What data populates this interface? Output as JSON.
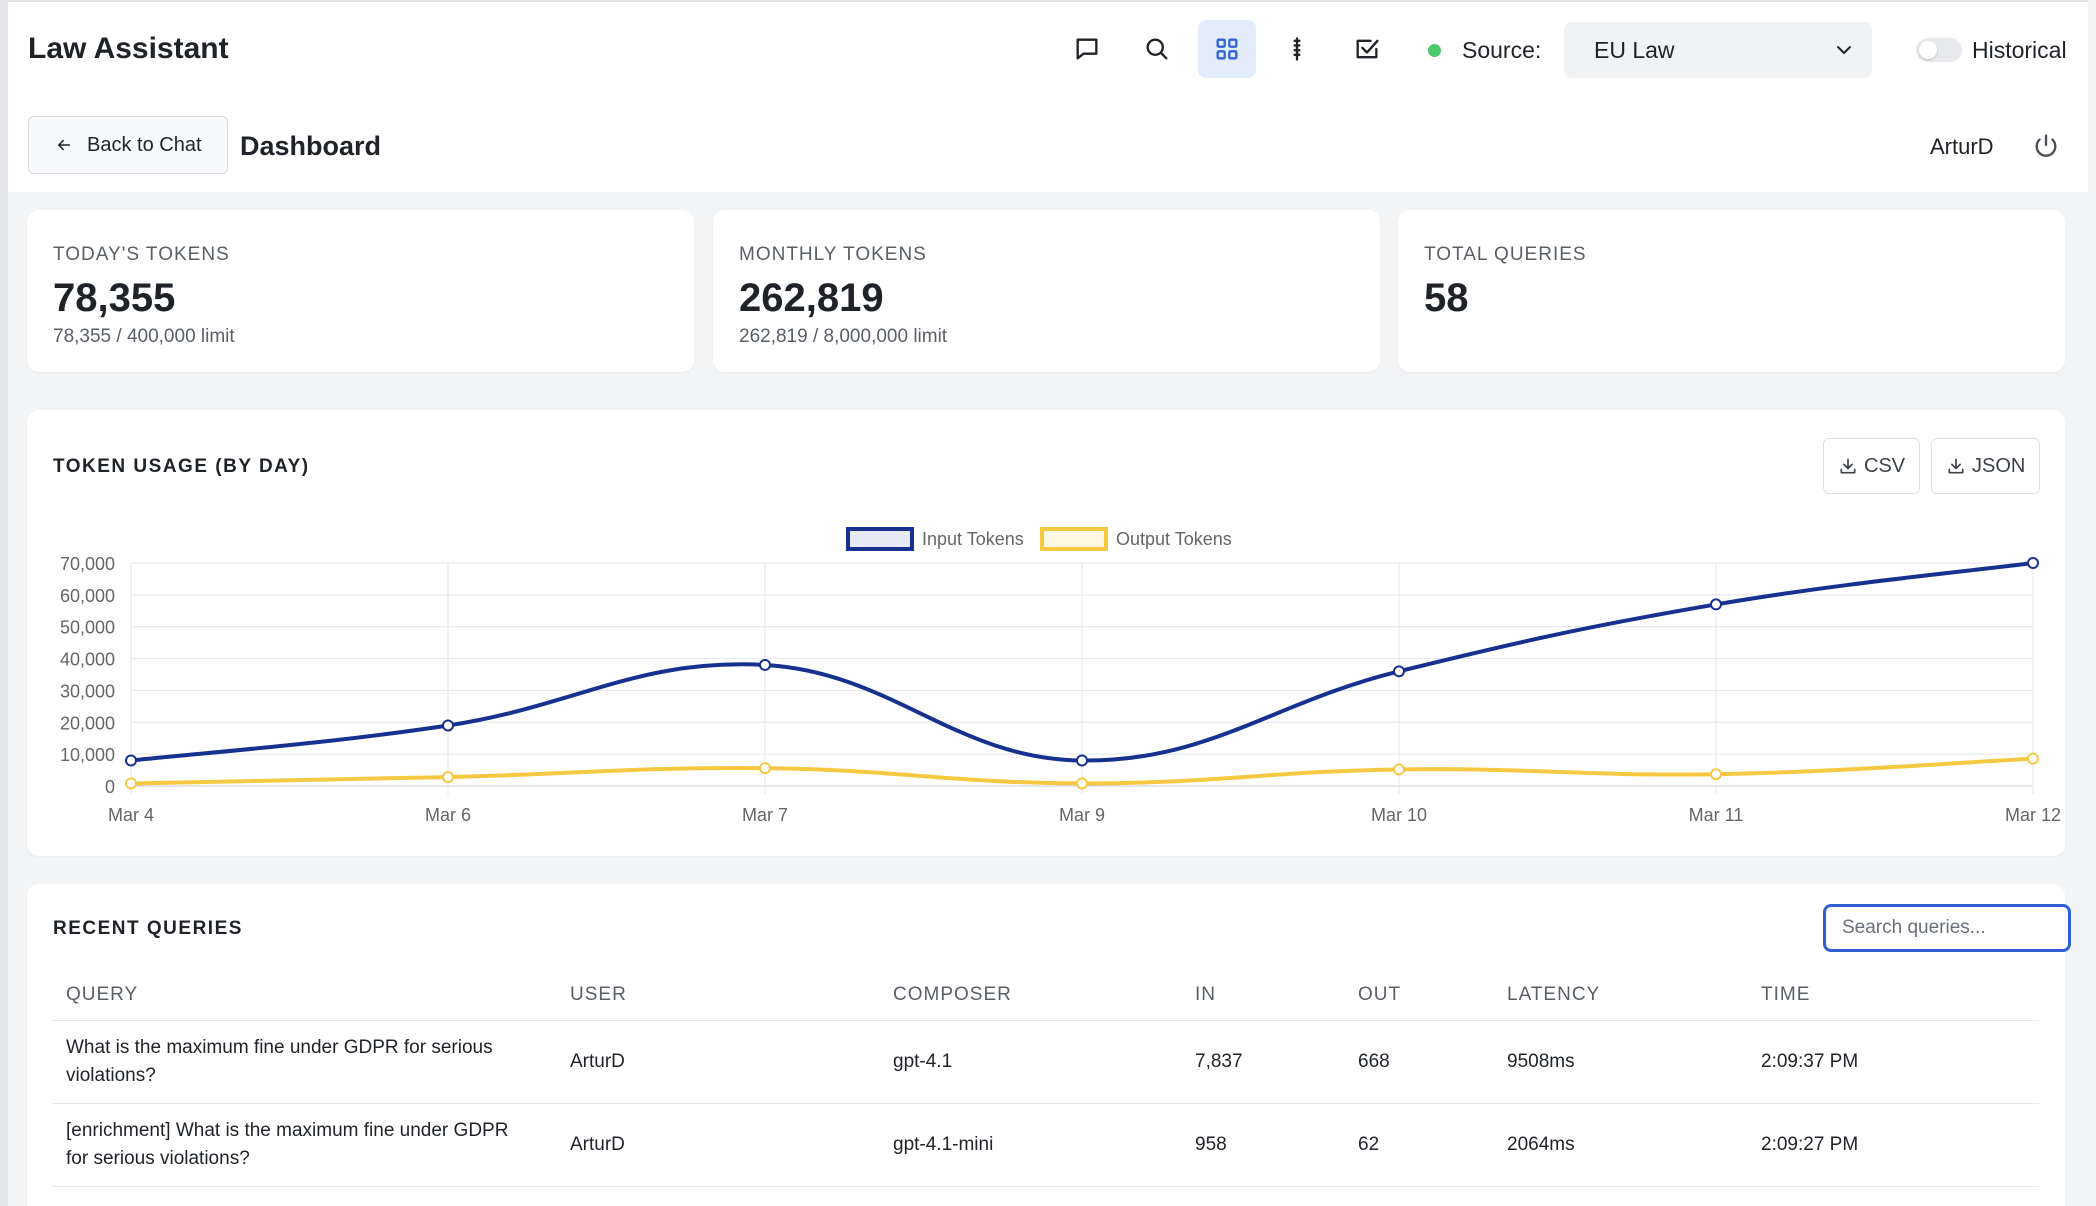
{
  "app": {
    "title": "Law Assistant",
    "source_label": "Source:",
    "source_value": "EU Law",
    "historical_label": "Historical",
    "historical_on": false
  },
  "header": {
    "back_label": "Back to Chat",
    "page_title": "Dashboard",
    "user": "ArturD"
  },
  "stats": [
    {
      "label": "TODAY'S TOKENS",
      "value": "78,355",
      "sub": "78,355 / 400,000 limit"
    },
    {
      "label": "MONTHLY TOKENS",
      "value": "262,819",
      "sub": "262,819 / 8,000,000 limit"
    },
    {
      "label": "TOTAL QUERIES",
      "value": "58",
      "sub": ""
    }
  ],
  "usage": {
    "title": "TOKEN USAGE (BY DAY)",
    "csv_label": "CSV",
    "json_label": "JSON"
  },
  "chart_data": {
    "type": "line",
    "title": "",
    "xlabel": "",
    "ylabel": "",
    "categories": [
      "Mar 4",
      "Mar 6",
      "Mar 7",
      "Mar 9",
      "Mar 10",
      "Mar 11",
      "Mar 12"
    ],
    "series": [
      {
        "name": "Input Tokens",
        "color": "#16318f",
        "values": [
          8000,
          19000,
          38000,
          8000,
          36000,
          57000,
          70000
        ]
      },
      {
        "name": "Output Tokens",
        "color": "#f5c842",
        "values": [
          800,
          2800,
          5600,
          800,
          5200,
          3700,
          8600
        ]
      }
    ],
    "ylim": [
      0,
      70000
    ],
    "yticks": [
      "70,000",
      "60,000",
      "50,000",
      "40,000",
      "30,000",
      "20,000",
      "10,000",
      "0"
    ],
    "grid": true,
    "legend": "top-center"
  },
  "queries": {
    "title": "RECENT QUERIES",
    "search_placeholder": "Search queries...",
    "columns": [
      "QUERY",
      "USER",
      "COMPOSER",
      "IN",
      "OUT",
      "LATENCY",
      "TIME"
    ],
    "rows": [
      {
        "query_1": "What is the maximum fine under GDPR for serious",
        "query_2": "violations?",
        "user": "ArturD",
        "composer": "gpt-4.1",
        "in": "7,837",
        "out": "668",
        "latency": "9508ms",
        "time": "2:09:37 PM"
      },
      {
        "query_1": "[enrichment] What is the maximum fine under GDPR",
        "query_2": "for serious violations?",
        "user": "ArturD",
        "composer": "gpt-4.1-mini",
        "in": "958",
        "out": "62",
        "latency": "2064ms",
        "time": "2:09:27 PM"
      }
    ]
  }
}
